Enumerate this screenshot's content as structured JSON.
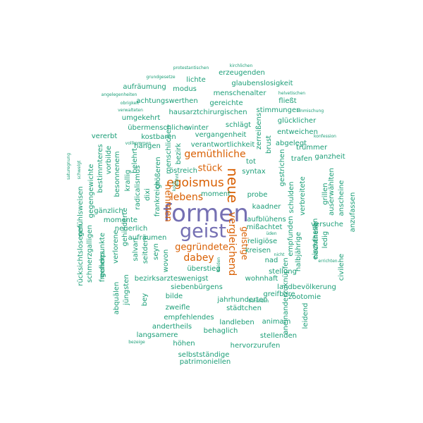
{
  "colors": {
    "dark": "#7570b3",
    "medium": "#d95f02",
    "light": "#1b9e77"
  },
  "words": [
    {
      "text": "formen",
      "weight": "dark"
    },
    {
      "text": "geist",
      "weight": "dark"
    },
    {
      "text": "neue",
      "weight": "medium"
    },
    {
      "text": "egoismus",
      "weight": "medium"
    },
    {
      "text": "vergleichend",
      "weight": "medium"
    },
    {
      "text": "dabey",
      "weight": "medium"
    },
    {
      "text": "gegründete",
      "weight": "medium"
    },
    {
      "text": "gemüthliche",
      "weight": "medium"
    },
    {
      "text": "lebens",
      "weight": "medium"
    },
    {
      "text": "stück",
      "weight": "medium"
    },
    {
      "text": "nehmen",
      "weight": "medium"
    },
    {
      "text": "geistige",
      "weight": "medium"
    },
    {
      "text": "protestantischen",
      "weight": "light"
    },
    {
      "text": "kirchlichen",
      "weight": "light"
    },
    {
      "text": "grundgesetze",
      "weight": "light"
    },
    {
      "text": "erzeugenden",
      "weight": "light"
    },
    {
      "text": "lichte",
      "weight": "light"
    },
    {
      "text": "glaubenslosigkeit",
      "weight": "light"
    },
    {
      "text": "aufräumung",
      "weight": "light"
    },
    {
      "text": "modus",
      "weight": "light"
    },
    {
      "text": "angelegenheiten",
      "weight": "light"
    },
    {
      "text": "menschenalter",
      "weight": "light"
    },
    {
      "text": "helvetischen",
      "weight": "light"
    },
    {
      "text": "achtungswerthen",
      "weight": "light"
    },
    {
      "text": "gereichte",
      "weight": "light"
    },
    {
      "text": "fließt",
      "weight": "light"
    },
    {
      "text": "obrigkeit",
      "weight": "light"
    },
    {
      "text": "verwalteten",
      "weight": "light"
    },
    {
      "text": "hausarztchirurgischen",
      "weight": "light"
    },
    {
      "text": "stimmungen",
      "weight": "light"
    },
    {
      "text": "einmischung",
      "weight": "light"
    },
    {
      "text": "umgekehrt",
      "weight": "light"
    },
    {
      "text": "glücklicher",
      "weight": "light"
    },
    {
      "text": "übermenschliche",
      "weight": "light"
    },
    {
      "text": "winter",
      "weight": "light"
    },
    {
      "text": "schlägt",
      "weight": "light"
    },
    {
      "text": "entweichen",
      "weight": "light"
    },
    {
      "text": "konfession",
      "weight": "light"
    },
    {
      "text": "kostbaren",
      "weight": "light"
    },
    {
      "text": "vergangenheit",
      "weight": "light"
    },
    {
      "text": "vererbt",
      "weight": "light"
    },
    {
      "text": "hängen",
      "weight": "light"
    },
    {
      "text": "abgelegt",
      "weight": "light"
    },
    {
      "text": "trümmer",
      "weight": "light"
    },
    {
      "text": "verantwortlichkeit",
      "weight": "light"
    },
    {
      "text": "vollkommen",
      "weight": "light"
    },
    {
      "text": "ganzheit",
      "weight": "light"
    },
    {
      "text": "trafen",
      "weight": "light"
    },
    {
      "text": "tot",
      "weight": "light"
    },
    {
      "text": "östreich",
      "weight": "light"
    },
    {
      "text": "syntax",
      "weight": "light"
    },
    {
      "text": "moment",
      "weight": "light"
    },
    {
      "text": "probe",
      "weight": "light"
    },
    {
      "text": "gänzlich",
      "weight": "light"
    },
    {
      "text": "kaadner",
      "weight": "light"
    },
    {
      "text": "momente",
      "weight": "light"
    },
    {
      "text": "aufblühens",
      "weight": "light"
    },
    {
      "text": "neuerlich",
      "weight": "light"
    },
    {
      "text": "mißachtet",
      "weight": "light"
    },
    {
      "text": "versuche",
      "weight": "light"
    },
    {
      "text": "aufräumen",
      "weight": "light"
    },
    {
      "text": "religiöse",
      "weight": "light"
    },
    {
      "text": "kreisen",
      "weight": "light"
    },
    {
      "text": "nad",
      "weight": "light"
    },
    {
      "text": "überstieg",
      "weight": "light"
    },
    {
      "text": "stellung",
      "weight": "light"
    },
    {
      "text": "bezirksarztes",
      "weight": "light"
    },
    {
      "text": "wenigst",
      "weight": "light"
    },
    {
      "text": "wohnhaft",
      "weight": "light"
    },
    {
      "text": "errichten",
      "weight": "light"
    },
    {
      "text": "siebenbürgens",
      "weight": "light"
    },
    {
      "text": "landbevölkerung",
      "weight": "light"
    },
    {
      "text": "greifbare",
      "weight": "light"
    },
    {
      "text": "zootomie",
      "weight": "light"
    },
    {
      "text": "bilde",
      "weight": "light"
    },
    {
      "text": "jahrhunderten",
      "weight": "light"
    },
    {
      "text": "zweifle",
      "weight": "light"
    },
    {
      "text": "städtchen",
      "weight": "light"
    },
    {
      "text": "empfehlendes",
      "weight": "light"
    },
    {
      "text": "andertheils",
      "weight": "light"
    },
    {
      "text": "landleben",
      "weight": "light"
    },
    {
      "text": "animam",
      "weight": "light"
    },
    {
      "text": "behaglich",
      "weight": "light"
    },
    {
      "text": "langsamere",
      "weight": "light"
    },
    {
      "text": "stellenden",
      "weight": "light"
    },
    {
      "text": "höhen",
      "weight": "light"
    },
    {
      "text": "hervorzurufen",
      "weight": "light"
    },
    {
      "text": "bezeige",
      "weight": "light"
    },
    {
      "text": "selbstständige",
      "weight": "light"
    },
    {
      "text": "patrimoniellen",
      "weight": "light"
    },
    {
      "text": "gefühlsweisen",
      "weight": "light"
    },
    {
      "text": "schmerzgalligen",
      "weight": "light"
    },
    {
      "text": "rücksichtsloseren",
      "weight": "light"
    },
    {
      "text": "freundes",
      "weight": "light"
    },
    {
      "text": "gegengewichte",
      "weight": "light"
    },
    {
      "text": "gefierpunkte",
      "weight": "light"
    },
    {
      "text": "abquälen",
      "weight": "light"
    },
    {
      "text": "verlorene",
      "weight": "light"
    },
    {
      "text": "bestimmteres",
      "weight": "light"
    },
    {
      "text": "vorbilde",
      "weight": "light"
    },
    {
      "text": "besonnenem",
      "weight": "light"
    },
    {
      "text": "krallig",
      "weight": "light"
    },
    {
      "text": "radicalismus",
      "weight": "light"
    },
    {
      "text": "jüngsten",
      "weight": "light"
    },
    {
      "text": "gehinderte",
      "weight": "light"
    },
    {
      "text": "salvari",
      "weight": "light"
    },
    {
      "text": "seitdem",
      "weight": "light"
    },
    {
      "text": "belehrt",
      "weight": "light"
    },
    {
      "text": "dixi",
      "weight": "light"
    },
    {
      "text": "größeren",
      "weight": "light"
    },
    {
      "text": "frankreich",
      "weight": "light"
    },
    {
      "text": "menschlichen",
      "weight": "light"
    },
    {
      "text": "bezirk",
      "weight": "light"
    },
    {
      "text": "seyn",
      "weight": "light"
    },
    {
      "text": "wovon",
      "weight": "light"
    },
    {
      "text": "bey",
      "weight": "light"
    },
    {
      "text": "zerreißens",
      "weight": "light"
    },
    {
      "text": "brust",
      "weight": "light"
    },
    {
      "text": "gestrichen",
      "weight": "light"
    },
    {
      "text": "schulden",
      "weight": "light"
    },
    {
      "text": "empfunden",
      "weight": "light"
    },
    {
      "text": "verbreitete",
      "weight": "light"
    },
    {
      "text": "halbjährige",
      "weight": "light"
    },
    {
      "text": "nachtheile",
      "weight": "light"
    },
    {
      "text": "einzulassen",
      "weight": "light"
    },
    {
      "text": "ledig",
      "weight": "light"
    },
    {
      "text": "grillen",
      "weight": "light"
    },
    {
      "text": "auserwählten",
      "weight": "light"
    },
    {
      "text": "anscheine",
      "weight": "light"
    },
    {
      "text": "anzufassen",
      "weight": "light"
    },
    {
      "text": "civilehe",
      "weight": "light"
    },
    {
      "text": "aneinanderzuknüpfen",
      "weight": "light"
    },
    {
      "text": "leidend",
      "weight": "light"
    },
    {
      "text": "wähnt",
      "weight": "light"
    },
    {
      "text": "koch",
      "weight": "light"
    },
    {
      "text": "nicht",
      "weight": "light"
    },
    {
      "text": "üden",
      "weight": "light"
    },
    {
      "text": "behörden",
      "weight": "light"
    },
    {
      "text": "beiden",
      "weight": "light"
    },
    {
      "text": "schwelgt",
      "weight": "light"
    },
    {
      "text": "saturegnung",
      "weight": "light"
    },
    {
      "text": "selbstbeschränkung",
      "weight": "light"
    }
  ]
}
